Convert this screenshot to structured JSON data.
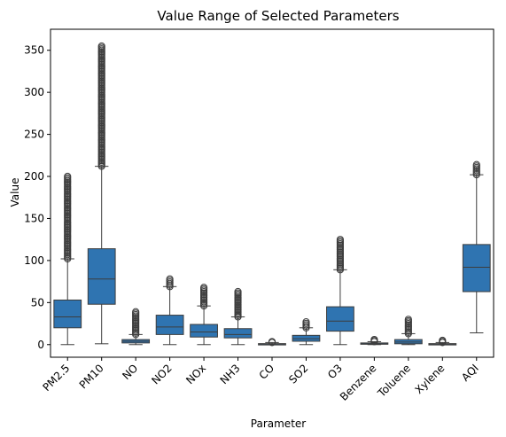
{
  "chart_data": {
    "type": "box",
    "title": "Value Range of Selected Parameters",
    "xlabel": "Parameter",
    "ylabel": "Value",
    "ylim": [
      -15,
      375
    ],
    "yticks": [
      0,
      50,
      100,
      150,
      200,
      250,
      300,
      350
    ],
    "box_color": "#2f74b1",
    "categories": [
      "PM2.5",
      "PM10",
      "NO",
      "NO2",
      "NOx",
      "NH3",
      "CO",
      "SO2",
      "O3",
      "Benzene",
      "Toluene",
      "Xylene",
      "AQI"
    ],
    "boxes": [
      {
        "whisker_low": 0,
        "q1": 20,
        "median": 33,
        "q3": 53,
        "whisker_high": 102,
        "outlier_range": [
          102,
          200
        ]
      },
      {
        "whisker_low": 1,
        "q1": 48,
        "median": 78,
        "q3": 114,
        "whisker_high": 212,
        "outlier_range": [
          212,
          355
        ]
      },
      {
        "whisker_low": 0,
        "q1": 2,
        "median": 4,
        "q3": 6,
        "whisker_high": 12,
        "outlier_range": [
          12,
          39
        ]
      },
      {
        "whisker_low": 0,
        "q1": 12,
        "median": 21,
        "q3": 35,
        "whisker_high": 69,
        "outlier_range": [
          69,
          78
        ]
      },
      {
        "whisker_low": 0,
        "q1": 9,
        "median": 15,
        "q3": 24,
        "whisker_high": 46,
        "outlier_range": [
          46,
          68
        ]
      },
      {
        "whisker_low": 0,
        "q1": 8,
        "median": 12,
        "q3": 19,
        "whisker_high": 33,
        "outlier_range": [
          33,
          63
        ]
      },
      {
        "whisker_low": 0,
        "q1": 0.3,
        "median": 0.7,
        "q3": 1.2,
        "whisker_high": 2.5,
        "outlier_range": [
          2.5,
          3.5
        ]
      },
      {
        "whisker_low": 0,
        "q1": 4,
        "median": 7,
        "q3": 11,
        "whisker_high": 20,
        "outlier_range": [
          20,
          27
        ]
      },
      {
        "whisker_low": 0,
        "q1": 16,
        "median": 28,
        "q3": 45,
        "whisker_high": 89,
        "outlier_range": [
          89,
          125
        ]
      },
      {
        "whisker_low": 0,
        "q1": 0.5,
        "median": 1,
        "q3": 2,
        "whisker_high": 3.5,
        "outlier_range": [
          3.5,
          6
        ]
      },
      {
        "whisker_low": 0,
        "q1": 1,
        "median": 3,
        "q3": 6,
        "whisker_high": 13,
        "outlier_range": [
          13,
          30
        ]
      },
      {
        "whisker_low": 0,
        "q1": 0.2,
        "median": 0.5,
        "q3": 1.2,
        "whisker_high": 2.5,
        "outlier_range": [
          2.5,
          5
        ]
      },
      {
        "whisker_low": 14,
        "q1": 63,
        "median": 92,
        "q3": 119,
        "whisker_high": 202,
        "outlier_range": [
          202,
          214
        ]
      }
    ]
  }
}
